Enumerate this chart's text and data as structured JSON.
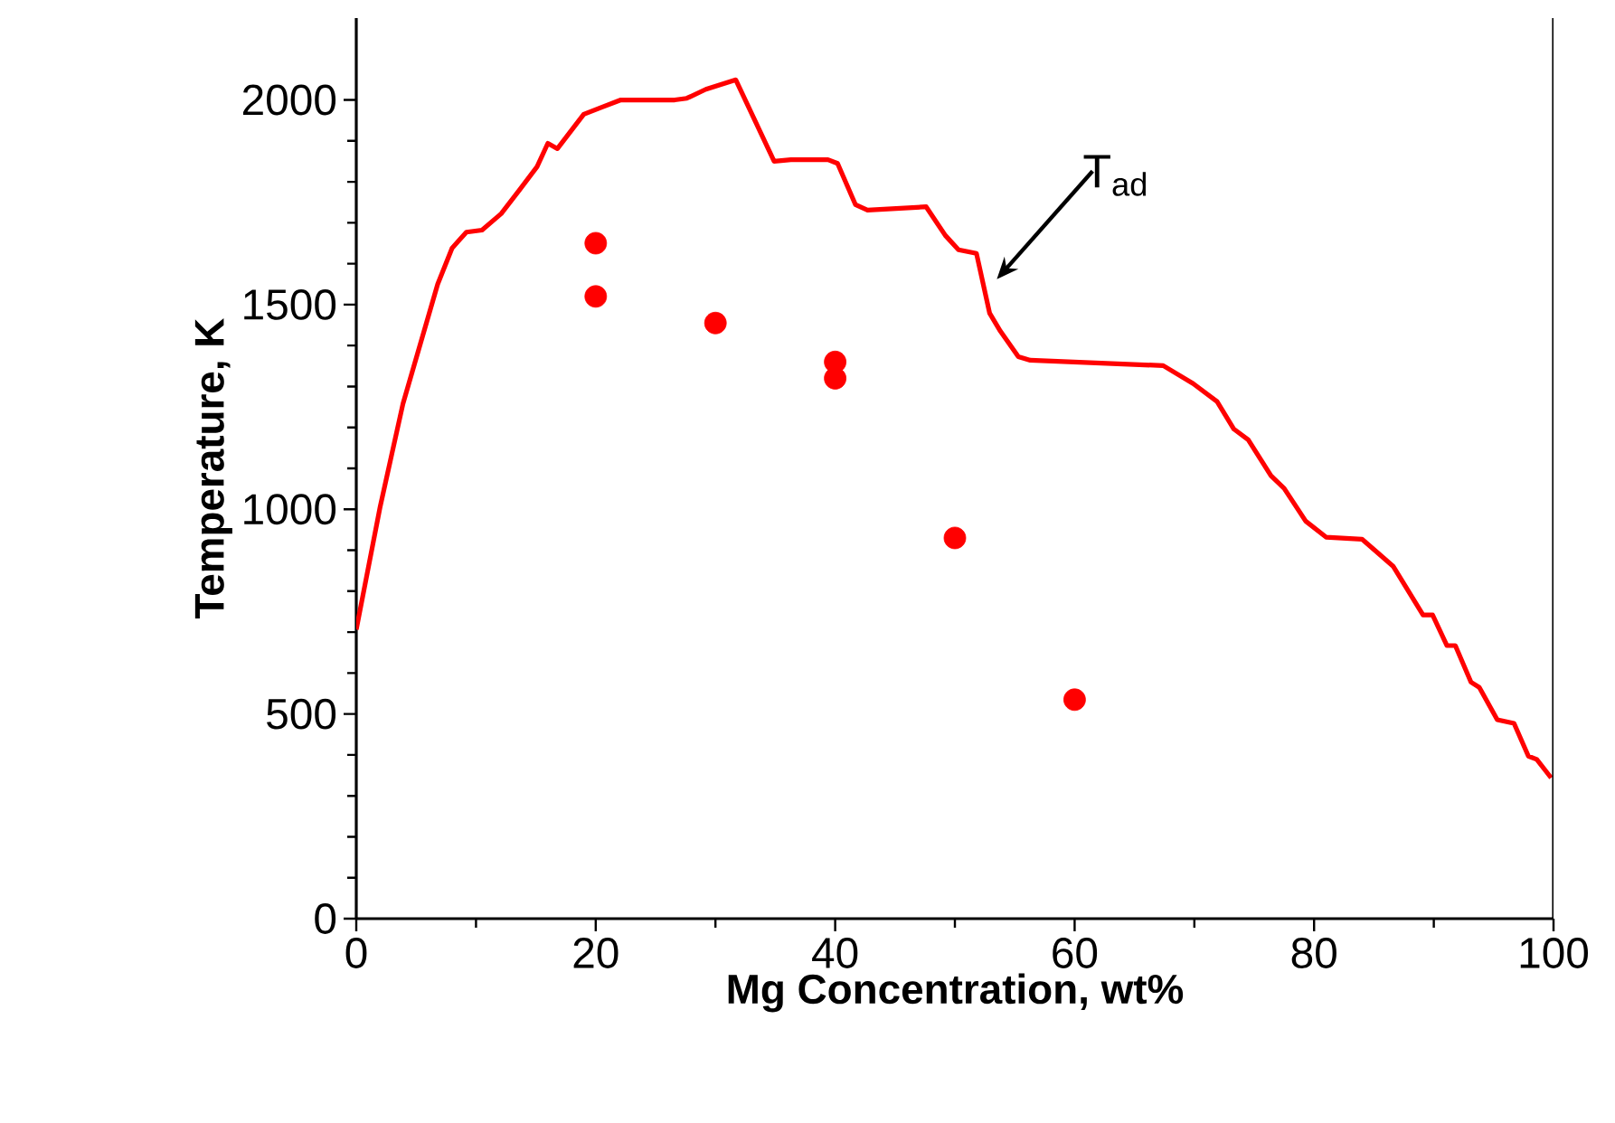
{
  "chart_data": {
    "type": "line",
    "xlabel": "Mg Concentration, wt%",
    "ylabel": "Temperature, K",
    "xlim": [
      0,
      100
    ],
    "ylim": [
      0,
      2200
    ],
    "xticks": [
      0,
      20,
      40,
      60,
      80,
      100
    ],
    "yticks": [
      0,
      500,
      1000,
      1500,
      2000
    ],
    "grid": false,
    "annotations": [
      "T$_{ad}$"
    ],
    "series": [
      {
        "color": "#ff0000",
        "marker": "none",
        "line_style": "solid",
        "x": [
          0,
          2.0,
          3.9,
          6.8,
          8.0,
          9.2,
          10.5,
          12.1,
          13.6,
          15.1,
          16.0,
          16.8,
          19.0,
          20.5,
          22.1,
          26.6,
          27.6,
          29.2,
          31.7,
          34.9,
          36.3,
          39.4,
          40.2,
          41.7,
          42.7,
          47.6,
          49.2,
          50.3,
          51.8,
          52.9,
          53.8,
          55.3,
          56.3,
          67.4,
          69.9,
          71.9,
          73.3,
          74.5,
          76.4,
          77.5,
          79.3,
          81.0,
          84.0,
          86.6,
          89.1,
          89.9,
          91.1,
          91.8,
          93.1,
          93.8,
          95.3,
          96.7,
          97.9,
          98.6,
          99.8
        ],
        "values": [
          706,
          1007,
          1258,
          1550,
          1638,
          1677,
          1682,
          1722,
          1779,
          1837,
          1894,
          1881,
          1965,
          1982,
          2000,
          2000,
          2004,
          2026,
          2049,
          1850,
          1854,
          1854,
          1845,
          1744,
          1731,
          1739,
          1669,
          1634,
          1625,
          1479,
          1435,
          1373,
          1364,
          1351,
          1307,
          1263,
          1196,
          1170,
          1082,
          1051,
          971,
          932,
          927,
          861,
          742,
          742,
          667,
          667,
          578,
          565,
          486,
          477,
          397,
          389,
          344
        ]
      },
      {
        "type": "scatter",
        "color": "#ff0000",
        "marker": "circle",
        "x": [
          20,
          20,
          30,
          40,
          40,
          50,
          60
        ],
        "values": [
          1650,
          1520,
          1455,
          1360,
          1320,
          930,
          535
        ]
      }
    ]
  }
}
